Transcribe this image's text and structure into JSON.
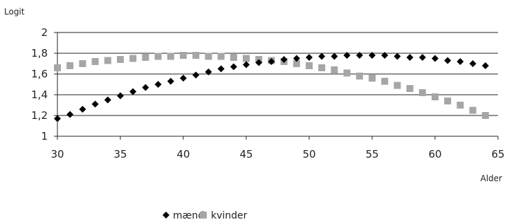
{
  "chart_data": {
    "type": "scatter",
    "ylabel": "Logit",
    "xlabel": "Alder",
    "xlim": [
      30,
      65
    ],
    "ylim": [
      1,
      2
    ],
    "x_ticks": [
      "30",
      "35",
      "40",
      "45",
      "50",
      "55",
      "60",
      "65"
    ],
    "y_ticks": [
      "1",
      "1,2",
      "1,4",
      "1,6",
      "1,8",
      "2"
    ],
    "grid": "horizontal",
    "legend_position": "bottom",
    "series": [
      {
        "name": "mænd",
        "marker": "diamond",
        "color": "#000000",
        "x": [
          30,
          31,
          32,
          33,
          34,
          35,
          36,
          37,
          38,
          39,
          40,
          41,
          42,
          43,
          44,
          45,
          46,
          47,
          48,
          49,
          50,
          51,
          52,
          53,
          54,
          55,
          56,
          57,
          58,
          59,
          60,
          61,
          62,
          63,
          64
        ],
        "y": [
          1.17,
          1.21,
          1.26,
          1.31,
          1.35,
          1.39,
          1.43,
          1.47,
          1.5,
          1.53,
          1.56,
          1.59,
          1.62,
          1.65,
          1.67,
          1.69,
          1.71,
          1.72,
          1.74,
          1.75,
          1.76,
          1.77,
          1.77,
          1.78,
          1.78,
          1.78,
          1.78,
          1.77,
          1.76,
          1.76,
          1.75,
          1.73,
          1.72,
          1.7,
          1.68
        ]
      },
      {
        "name": "kvinder",
        "marker": "square",
        "color": "#a6a6a6",
        "x": [
          30,
          31,
          32,
          33,
          34,
          35,
          36,
          37,
          38,
          39,
          40,
          41,
          42,
          43,
          44,
          45,
          46,
          47,
          48,
          49,
          50,
          51,
          52,
          53,
          54,
          55,
          56,
          57,
          58,
          59,
          60,
          61,
          62,
          63,
          64
        ],
        "y": [
          1.66,
          1.68,
          1.7,
          1.72,
          1.73,
          1.74,
          1.75,
          1.76,
          1.77,
          1.77,
          1.78,
          1.78,
          1.77,
          1.77,
          1.76,
          1.75,
          1.74,
          1.73,
          1.72,
          1.7,
          1.68,
          1.66,
          1.64,
          1.61,
          1.58,
          1.56,
          1.53,
          1.49,
          1.46,
          1.42,
          1.38,
          1.34,
          1.3,
          1.25,
          1.2
        ]
      }
    ]
  }
}
